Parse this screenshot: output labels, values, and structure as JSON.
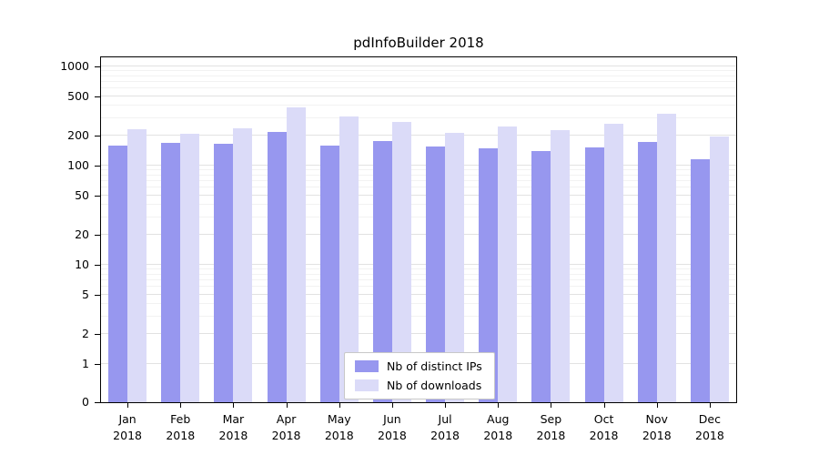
{
  "chart_data": {
    "type": "bar",
    "title": "pdInfoBuilder 2018",
    "categories": [
      "Jan",
      "Feb",
      "Mar",
      "Apr",
      "May",
      "Jun",
      "Jul",
      "Aug",
      "Sep",
      "Oct",
      "Nov",
      "Dec"
    ],
    "year_label": "2018",
    "series": [
      {
        "name": "Nb of distinct IPs",
        "color": "#9797ef",
        "values": [
          160,
          168,
          165,
          220,
          158,
          178,
          155,
          150,
          140,
          152,
          172,
          115
        ]
      },
      {
        "name": "Nb of downloads",
        "color": "#dbdbf8",
        "values": [
          235,
          210,
          240,
          390,
          310,
          275,
          215,
          250,
          230,
          265,
          330,
          195
        ]
      }
    ],
    "y_axis": {
      "scale": "log",
      "ticks": [
        0,
        1,
        2,
        5,
        10,
        20,
        50,
        100,
        200,
        500,
        1000
      ],
      "range_top": 1000
    },
    "xlabel": "",
    "ylabel": "",
    "grid": "horizontal",
    "legend_position": "bottom-center",
    "colors": {
      "axis": "#000000",
      "grid_major": "#e2e2e2",
      "grid_minor": "#f2f2f2",
      "background": "#ffffff"
    }
  }
}
